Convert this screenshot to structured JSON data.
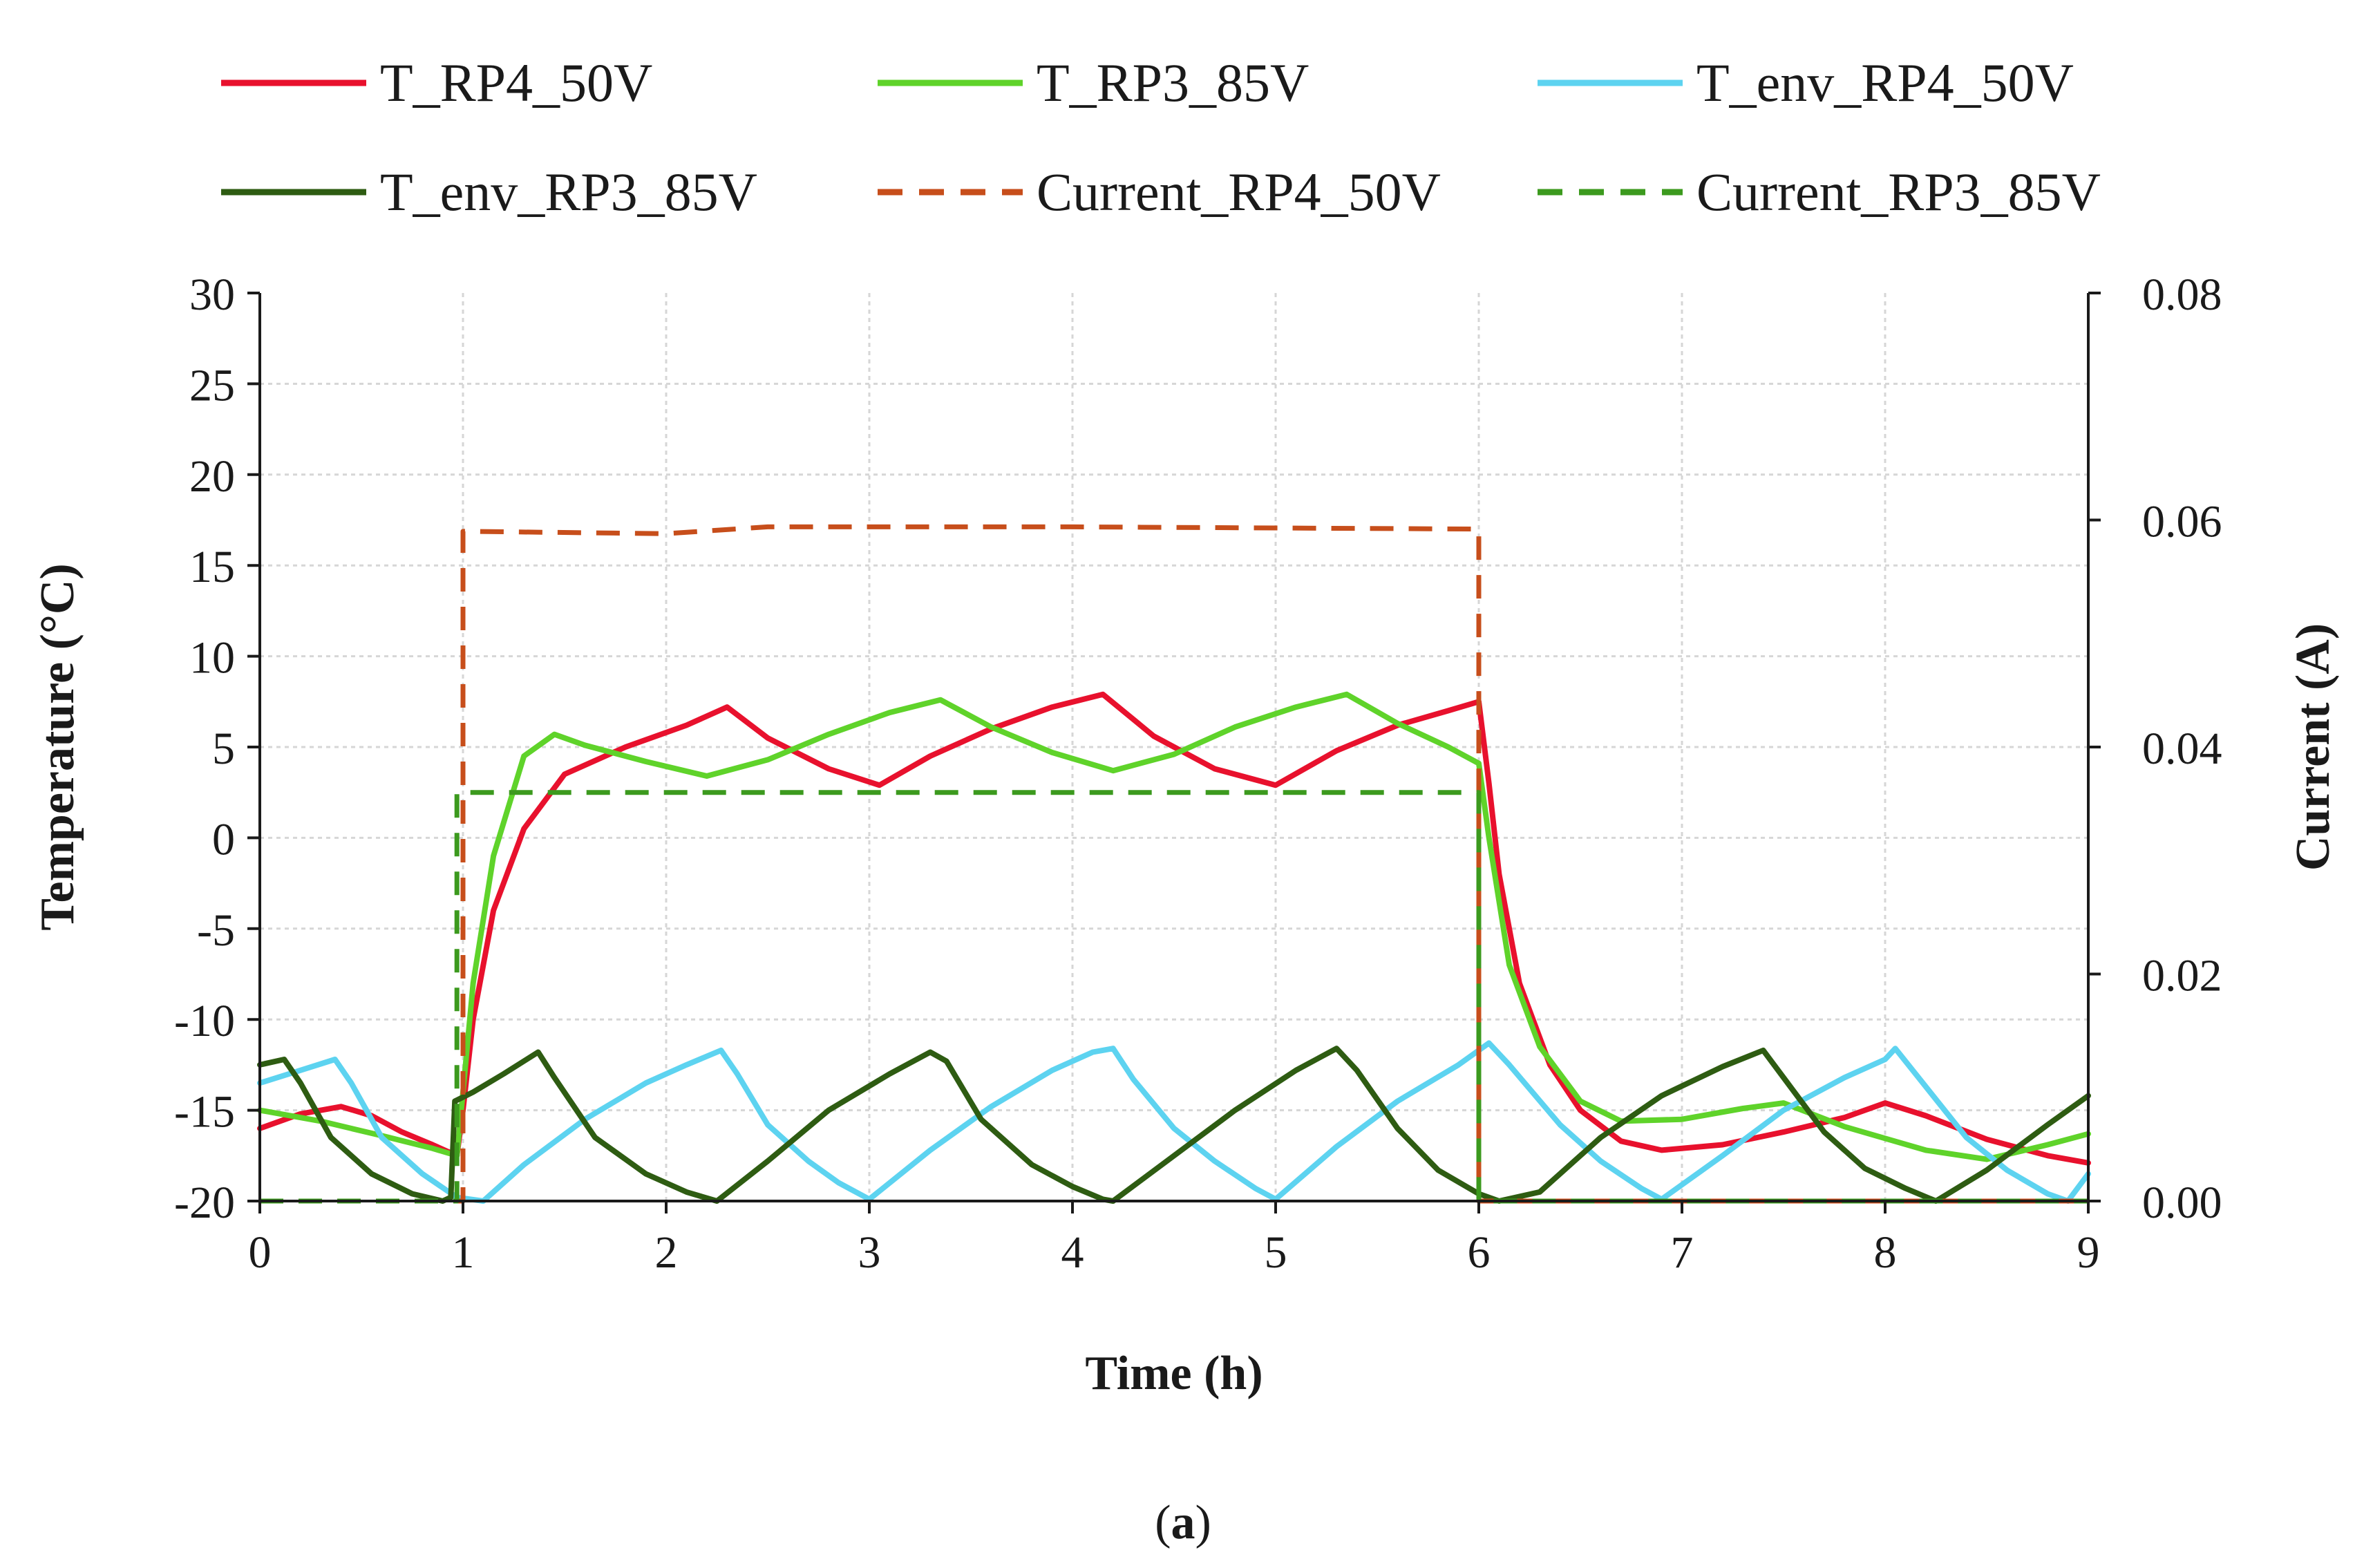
{
  "chart_data": {
    "type": "line",
    "title": "",
    "xlabel": "Time (h)",
    "ylabel": "Temperature (°C)",
    "y2label": "Current (A)",
    "xlim": [
      0,
      9
    ],
    "ylim": [
      -20,
      30
    ],
    "y2lim": [
      0,
      0.08
    ],
    "x_ticks": [
      "0",
      "1",
      "2",
      "3",
      "4",
      "5",
      "6",
      "7",
      "8",
      "9"
    ],
    "y_ticks": [
      "-20",
      "-15",
      "-10",
      "-5",
      "0",
      "5",
      "10",
      "15",
      "20",
      "25",
      "30"
    ],
    "y2_ticks": [
      "0.00",
      "0.02",
      "0.04",
      "0.06",
      "0.08"
    ],
    "grid": true,
    "legend_position": "top",
    "caption_letter": "a",
    "series": [
      {
        "name": "T_RP4_50V",
        "axis": "left",
        "color": "#e8112d",
        "dash": "solid",
        "points": [
          [
            0,
            -16
          ],
          [
            0.2,
            -15.2
          ],
          [
            0.4,
            -14.8
          ],
          [
            0.55,
            -15.3
          ],
          [
            0.7,
            -16.2
          ],
          [
            0.85,
            -16.9
          ],
          [
            0.97,
            -17.5
          ],
          [
            1.0,
            -15
          ],
          [
            1.05,
            -10
          ],
          [
            1.15,
            -4
          ],
          [
            1.3,
            0.5
          ],
          [
            1.5,
            3.5
          ],
          [
            1.8,
            5
          ],
          [
            2.1,
            6.2
          ],
          [
            2.3,
            7.2
          ],
          [
            2.5,
            5.5
          ],
          [
            2.8,
            3.8
          ],
          [
            3.05,
            2.9
          ],
          [
            3.3,
            4.5
          ],
          [
            3.6,
            6
          ],
          [
            3.9,
            7.2
          ],
          [
            4.15,
            7.9
          ],
          [
            4.4,
            5.6
          ],
          [
            4.7,
            3.8
          ],
          [
            5.0,
            2.9
          ],
          [
            5.3,
            4.8
          ],
          [
            5.6,
            6.2
          ],
          [
            5.85,
            7
          ],
          [
            6.0,
            7.5
          ],
          [
            6.05,
            3
          ],
          [
            6.1,
            -2
          ],
          [
            6.2,
            -8
          ],
          [
            6.35,
            -12.5
          ],
          [
            6.5,
            -15
          ],
          [
            6.7,
            -16.7
          ],
          [
            6.9,
            -17.2
          ],
          [
            7.2,
            -16.9
          ],
          [
            7.5,
            -16.2
          ],
          [
            7.8,
            -15.4
          ],
          [
            8.0,
            -14.6
          ],
          [
            8.2,
            -15.3
          ],
          [
            8.5,
            -16.6
          ],
          [
            8.8,
            -17.5
          ],
          [
            9.0,
            -17.9
          ]
        ]
      },
      {
        "name": "T_RP3_85V",
        "axis": "left",
        "color": "#5fd32a",
        "dash": "solid",
        "points": [
          [
            0,
            -15
          ],
          [
            0.3,
            -15.6
          ],
          [
            0.6,
            -16.4
          ],
          [
            0.85,
            -17.1
          ],
          [
            0.97,
            -17.5
          ],
          [
            1.0,
            -14
          ],
          [
            1.05,
            -8
          ],
          [
            1.15,
            -1
          ],
          [
            1.3,
            4.5
          ],
          [
            1.45,
            5.7
          ],
          [
            1.6,
            5.1
          ],
          [
            1.9,
            4.2
          ],
          [
            2.2,
            3.4
          ],
          [
            2.5,
            4.3
          ],
          [
            2.8,
            5.7
          ],
          [
            3.1,
            6.9
          ],
          [
            3.35,
            7.6
          ],
          [
            3.6,
            6.1
          ],
          [
            3.9,
            4.7
          ],
          [
            4.2,
            3.7
          ],
          [
            4.5,
            4.6
          ],
          [
            4.8,
            6.1
          ],
          [
            5.1,
            7.2
          ],
          [
            5.35,
            7.9
          ],
          [
            5.6,
            6.3
          ],
          [
            5.85,
            5
          ],
          [
            6.0,
            4.1
          ],
          [
            6.05,
            0
          ],
          [
            6.15,
            -7
          ],
          [
            6.3,
            -11.5
          ],
          [
            6.5,
            -14.5
          ],
          [
            6.7,
            -15.6
          ],
          [
            7.0,
            -15.5
          ],
          [
            7.3,
            -14.9
          ],
          [
            7.5,
            -14.6
          ],
          [
            7.8,
            -15.9
          ],
          [
            8.2,
            -17.2
          ],
          [
            8.5,
            -17.7
          ],
          [
            8.8,
            -16.9
          ],
          [
            9.0,
            -16.3
          ]
        ]
      },
      {
        "name": "T_env_RP4_50V",
        "axis": "left",
        "color": "#5dd3f0",
        "dash": "solid",
        "points": [
          [
            0,
            -13.5
          ],
          [
            0.2,
            -12.8
          ],
          [
            0.37,
            -12.2
          ],
          [
            0.45,
            -13.5
          ],
          [
            0.6,
            -16.5
          ],
          [
            0.8,
            -18.5
          ],
          [
            0.97,
            -19.8
          ],
          [
            1.1,
            -20
          ],
          [
            1.3,
            -18
          ],
          [
            1.6,
            -15.5
          ],
          [
            1.9,
            -13.5
          ],
          [
            2.1,
            -12.5
          ],
          [
            2.27,
            -11.7
          ],
          [
            2.35,
            -13
          ],
          [
            2.5,
            -15.8
          ],
          [
            2.7,
            -17.8
          ],
          [
            2.85,
            -19
          ],
          [
            3.0,
            -19.9
          ],
          [
            3.3,
            -17.2
          ],
          [
            3.6,
            -14.8
          ],
          [
            3.9,
            -12.8
          ],
          [
            4.1,
            -11.8
          ],
          [
            4.2,
            -11.6
          ],
          [
            4.3,
            -13.3
          ],
          [
            4.5,
            -16
          ],
          [
            4.7,
            -17.8
          ],
          [
            4.9,
            -19.3
          ],
          [
            5.0,
            -19.9
          ],
          [
            5.3,
            -17
          ],
          [
            5.6,
            -14.5
          ],
          [
            5.9,
            -12.5
          ],
          [
            6.05,
            -11.3
          ],
          [
            6.15,
            -12.5
          ],
          [
            6.4,
            -15.8
          ],
          [
            6.6,
            -17.8
          ],
          [
            6.8,
            -19.3
          ],
          [
            6.9,
            -19.9
          ],
          [
            7.2,
            -17.5
          ],
          [
            7.5,
            -15
          ],
          [
            7.8,
            -13.2
          ],
          [
            8.0,
            -12.2
          ],
          [
            8.05,
            -11.6
          ],
          [
            8.15,
            -13
          ],
          [
            8.4,
            -16.5
          ],
          [
            8.6,
            -18.3
          ],
          [
            8.8,
            -19.6
          ],
          [
            8.9,
            -20
          ],
          [
            9.0,
            -18.5
          ]
        ]
      },
      {
        "name": "T_env_RP3_85V",
        "axis": "left",
        "color": "#2e5c12",
        "dash": "solid",
        "points": [
          [
            0,
            -12.5
          ],
          [
            0.12,
            -12.2
          ],
          [
            0.2,
            -13.5
          ],
          [
            0.35,
            -16.5
          ],
          [
            0.55,
            -18.5
          ],
          [
            0.75,
            -19.6
          ],
          [
            0.9,
            -20
          ],
          [
            0.94,
            -19.8
          ],
          [
            0.96,
            -14.5
          ],
          [
            1.05,
            -14
          ],
          [
            1.2,
            -13
          ],
          [
            1.37,
            -11.8
          ],
          [
            1.45,
            -13.2
          ],
          [
            1.65,
            -16.5
          ],
          [
            1.9,
            -18.5
          ],
          [
            2.1,
            -19.5
          ],
          [
            2.25,
            -20
          ],
          [
            2.5,
            -17.8
          ],
          [
            2.8,
            -15
          ],
          [
            3.1,
            -13
          ],
          [
            3.3,
            -11.8
          ],
          [
            3.38,
            -12.3
          ],
          [
            3.55,
            -15.5
          ],
          [
            3.8,
            -18
          ],
          [
            4.0,
            -19.2
          ],
          [
            4.15,
            -19.9
          ],
          [
            4.2,
            -20
          ],
          [
            4.5,
            -17.5
          ],
          [
            4.8,
            -15
          ],
          [
            5.1,
            -12.8
          ],
          [
            5.3,
            -11.6
          ],
          [
            5.4,
            -12.8
          ],
          [
            5.6,
            -16
          ],
          [
            5.8,
            -18.3
          ],
          [
            6.0,
            -19.6
          ],
          [
            6.1,
            -20
          ],
          [
            6.3,
            -19.5
          ],
          [
            6.6,
            -16.5
          ],
          [
            6.9,
            -14.2
          ],
          [
            7.2,
            -12.6
          ],
          [
            7.4,
            -11.7
          ],
          [
            7.5,
            -13.2
          ],
          [
            7.7,
            -16.2
          ],
          [
            7.9,
            -18.2
          ],
          [
            8.1,
            -19.3
          ],
          [
            8.25,
            -20
          ],
          [
            8.5,
            -18.3
          ],
          [
            8.8,
            -15.8
          ],
          [
            9.0,
            -14.2
          ]
        ]
      },
      {
        "name": "Current_RP4_50V",
        "axis": "right",
        "color": "#c74e1b",
        "dash": "dashed",
        "points": [
          [
            0,
            0
          ],
          [
            1.0,
            0
          ],
          [
            1.0,
            0.059
          ],
          [
            2.0,
            0.0588
          ],
          [
            2.5,
            0.0594
          ],
          [
            4.0,
            0.0594
          ],
          [
            6.0,
            0.0592
          ],
          [
            6.0,
            0
          ],
          [
            9.0,
            0
          ]
        ]
      },
      {
        "name": "Current_RP3_85V",
        "axis": "right",
        "color": "#3c9a1e",
        "dash": "dashed",
        "points": [
          [
            0,
            0
          ],
          [
            0.97,
            0
          ],
          [
            0.97,
            0.036
          ],
          [
            6.0,
            0.036
          ],
          [
            6.0,
            0
          ],
          [
            9.0,
            0
          ]
        ]
      }
    ]
  }
}
